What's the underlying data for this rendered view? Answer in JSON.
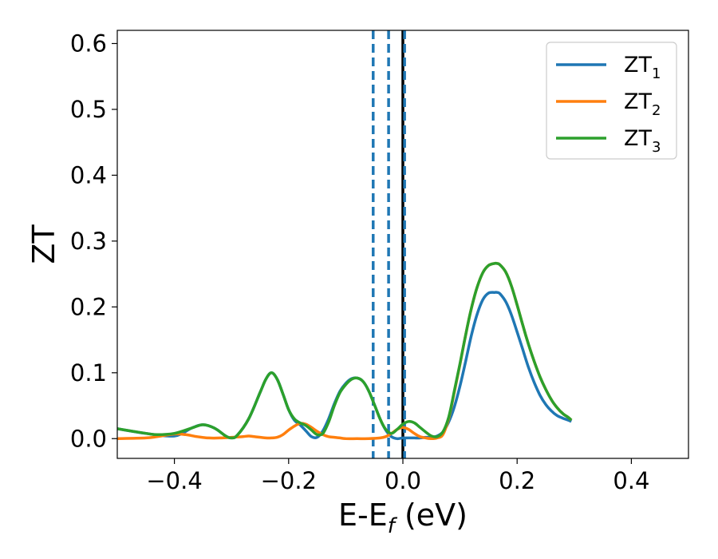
{
  "chart_data": {
    "type": "line",
    "xlabel": {
      "base": "E-E",
      "sub": "f",
      "unit": " (eV)"
    },
    "ylabel": "ZT",
    "xlim": [
      -0.5,
      0.5
    ],
    "ylim": [
      -0.03,
      0.62
    ],
    "xticks": [
      -0.4,
      -0.2,
      0.0,
      0.2,
      0.4
    ],
    "xtick_labels": [
      "−0.4",
      "−0.2",
      "0.0",
      "0.2",
      "0.4"
    ],
    "yticks": [
      0.0,
      0.1,
      0.2,
      0.3,
      0.4,
      0.5,
      0.6
    ],
    "ytick_labels": [
      "0.0",
      "0.1",
      "0.2",
      "0.3",
      "0.4",
      "0.5",
      "0.6"
    ],
    "grid": false,
    "legend_position": "top-right",
    "vertical_lines": [
      {
        "x": -0.052,
        "style": "dashed",
        "color": "#1f77b4"
      },
      {
        "x": -0.025,
        "style": "dashed",
        "color": "#1f77b4"
      },
      {
        "x": 0.0,
        "style": "solid",
        "color": "#000000"
      },
      {
        "x": 0.003,
        "style": "dashed",
        "color": "#1f77b4"
      }
    ],
    "series": [
      {
        "name": "ZT",
        "sub": "1",
        "color": "#1f77b4",
        "x": [
          -0.5,
          -0.45,
          -0.4,
          -0.37,
          -0.35,
          -0.33,
          -0.31,
          -0.3,
          -0.29,
          -0.27,
          -0.25,
          -0.24,
          -0.23,
          -0.22,
          -0.21,
          -0.2,
          -0.19,
          -0.18,
          -0.17,
          -0.16,
          -0.15,
          -0.14,
          -0.13,
          -0.12,
          -0.11,
          -0.1,
          -0.09,
          -0.08,
          -0.07,
          -0.06,
          -0.05,
          -0.04,
          -0.03,
          -0.02,
          -0.01,
          0.0,
          0.01,
          0.02,
          0.03,
          0.04,
          0.05,
          0.06,
          0.07,
          0.08,
          0.09,
          0.1,
          0.11,
          0.12,
          0.13,
          0.14,
          0.15,
          0.16,
          0.165,
          0.17,
          0.18,
          0.19,
          0.2,
          0.21,
          0.22,
          0.23,
          0.24,
          0.25,
          0.26,
          0.27,
          0.28,
          0.29,
          0.295
        ],
        "y": [
          0.015,
          0.008,
          0.004,
          0.016,
          0.021,
          0.016,
          0.004,
          0.001,
          0.005,
          0.03,
          0.07,
          0.09,
          0.1,
          0.09,
          0.068,
          0.044,
          0.028,
          0.021,
          0.012,
          0.003,
          0.002,
          0.012,
          0.03,
          0.053,
          0.072,
          0.084,
          0.091,
          0.092,
          0.087,
          0.073,
          0.052,
          0.03,
          0.013,
          0.003,
          0.0,
          0.001,
          0.001,
          0.001,
          0.001,
          0.002,
          0.002,
          0.004,
          0.01,
          0.025,
          0.048,
          0.08,
          0.118,
          0.157,
          0.189,
          0.211,
          0.221,
          0.222,
          0.222,
          0.22,
          0.208,
          0.188,
          0.162,
          0.135,
          0.108,
          0.085,
          0.066,
          0.052,
          0.042,
          0.035,
          0.031,
          0.028,
          0.026
        ]
      },
      {
        "name": "ZT",
        "sub": "2",
        "color": "#ff7f0e",
        "x": [
          -0.5,
          -0.45,
          -0.43,
          -0.4,
          -0.38,
          -0.36,
          -0.34,
          -0.32,
          -0.3,
          -0.28,
          -0.27,
          -0.26,
          -0.24,
          -0.23,
          -0.22,
          -0.21,
          -0.2,
          -0.19,
          -0.18,
          -0.17,
          -0.16,
          -0.15,
          -0.14,
          -0.13,
          -0.12,
          -0.11,
          -0.1,
          -0.08,
          -0.06,
          -0.04,
          -0.03,
          -0.02,
          -0.01,
          0.0,
          0.01,
          0.02,
          0.03,
          0.04,
          0.05,
          0.06,
          0.07,
          0.08,
          0.09,
          0.1,
          0.11,
          0.12,
          0.13,
          0.14,
          0.15,
          0.16,
          0.165,
          0.17,
          0.18,
          0.19,
          0.2,
          0.21,
          0.22,
          0.23,
          0.24,
          0.25,
          0.26,
          0.27,
          0.28,
          0.29,
          0.295
        ],
        "y": [
          0.0,
          0.001,
          0.003,
          0.007,
          0.006,
          0.003,
          0.001,
          0.001,
          0.002,
          0.003,
          0.004,
          0.003,
          0.001,
          0.001,
          0.002,
          0.006,
          0.013,
          0.019,
          0.023,
          0.022,
          0.017,
          0.011,
          0.006,
          0.003,
          0.002,
          0.001,
          0.0,
          0.0,
          0.0,
          0.001,
          0.003,
          0.008,
          0.014,
          0.017,
          0.014,
          0.008,
          0.003,
          0.001,
          0.0,
          0.001,
          0.006,
          0.03,
          0.07,
          0.113,
          0.158,
          0.198,
          0.23,
          0.252,
          0.263,
          0.266,
          0.266,
          0.264,
          0.253,
          0.232,
          0.203,
          0.172,
          0.143,
          0.117,
          0.094,
          0.075,
          0.059,
          0.047,
          0.038,
          0.032,
          0.028
        ]
      },
      {
        "name": "ZT",
        "sub": "3",
        "color": "#2ca02c",
        "x": [
          -0.5,
          -0.45,
          -0.43,
          -0.4,
          -0.37,
          -0.35,
          -0.33,
          -0.31,
          -0.3,
          -0.29,
          -0.27,
          -0.25,
          -0.24,
          -0.23,
          -0.22,
          -0.21,
          -0.2,
          -0.19,
          -0.18,
          -0.17,
          -0.16,
          -0.15,
          -0.14,
          -0.13,
          -0.12,
          -0.11,
          -0.1,
          -0.09,
          -0.08,
          -0.07,
          -0.06,
          -0.05,
          -0.04,
          -0.03,
          -0.02,
          -0.01,
          0.0,
          0.01,
          0.02,
          0.03,
          0.04,
          0.05,
          0.06,
          0.07,
          0.08,
          0.09,
          0.1,
          0.11,
          0.12,
          0.13,
          0.14,
          0.15,
          0.16,
          0.165,
          0.17,
          0.18,
          0.19,
          0.2,
          0.21,
          0.22,
          0.23,
          0.24,
          0.25,
          0.26,
          0.27,
          0.28,
          0.29,
          0.295
        ],
        "y": [
          0.015,
          0.008,
          0.006,
          0.008,
          0.016,
          0.021,
          0.016,
          0.004,
          0.001,
          0.005,
          0.03,
          0.07,
          0.09,
          0.1,
          0.09,
          0.068,
          0.044,
          0.03,
          0.024,
          0.02,
          0.013,
          0.006,
          0.008,
          0.025,
          0.05,
          0.07,
          0.082,
          0.09,
          0.092,
          0.087,
          0.073,
          0.052,
          0.03,
          0.014,
          0.008,
          0.014,
          0.022,
          0.026,
          0.024,
          0.017,
          0.01,
          0.004,
          0.003,
          0.01,
          0.032,
          0.072,
          0.114,
          0.158,
          0.198,
          0.23,
          0.252,
          0.263,
          0.266,
          0.266,
          0.264,
          0.253,
          0.232,
          0.203,
          0.172,
          0.143,
          0.117,
          0.094,
          0.075,
          0.059,
          0.047,
          0.038,
          0.032,
          0.028
        ]
      }
    ]
  }
}
